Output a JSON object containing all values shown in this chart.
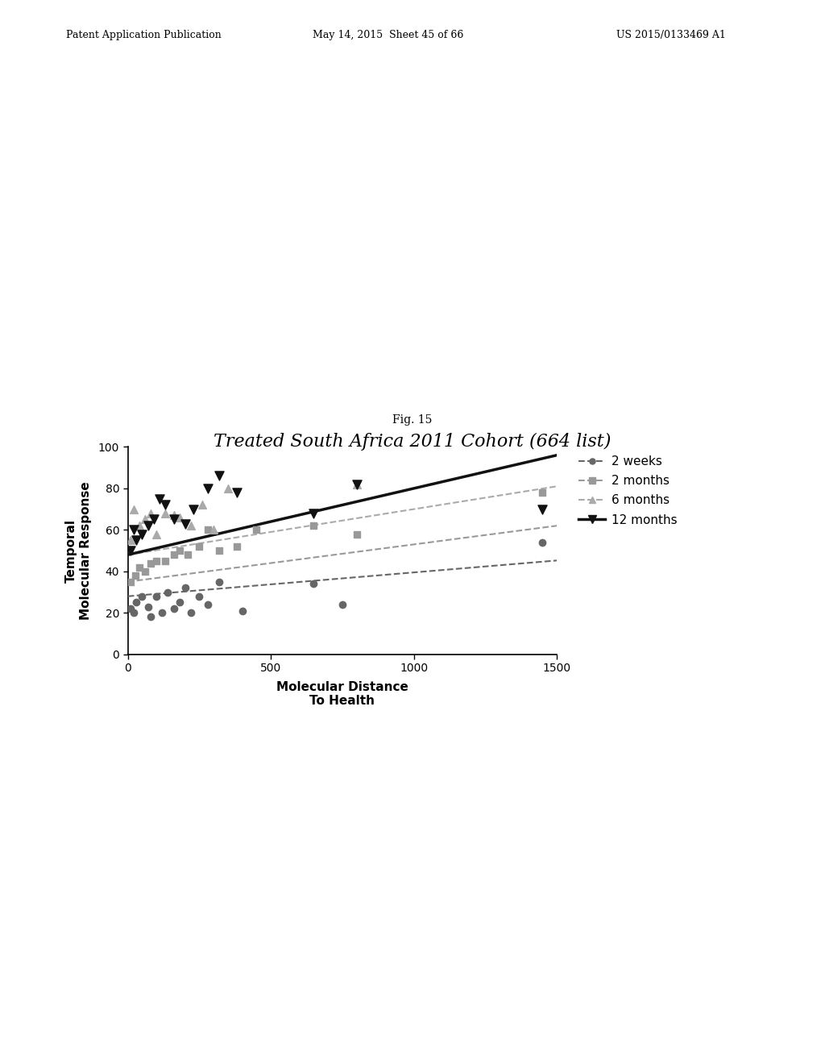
{
  "fig_label": "Fig. 15",
  "title": "Treated South Africa 2011 Cohort (664 list)",
  "xlabel": "Molecular Distance\nTo Health",
  "ylabel": "Temporal\nMolecular Response",
  "xlim": [
    0,
    1500
  ],
  "ylim": [
    0,
    100
  ],
  "xticks": [
    0,
    500,
    1000,
    1500
  ],
  "yticks": [
    0,
    20,
    40,
    60,
    80,
    100
  ],
  "series": [
    {
      "label": "2 weeks",
      "color": "#666666",
      "marker": "o",
      "markersize": 6,
      "line_slope": 0.0115,
      "line_intercept": 28.0,
      "linewidth": 1.5,
      "linestyle": "--",
      "scatter_x": [
        10,
        20,
        30,
        50,
        70,
        80,
        100,
        120,
        140,
        160,
        180,
        200,
        220,
        250,
        280,
        320,
        400,
        650,
        750,
        1450
      ],
      "scatter_y": [
        22,
        20,
        25,
        28,
        23,
        18,
        28,
        20,
        30,
        22,
        25,
        32,
        20,
        28,
        24,
        35,
        21,
        34,
        24,
        54
      ]
    },
    {
      "label": "2 months",
      "color": "#999999",
      "marker": "s",
      "markersize": 6,
      "line_slope": 0.018,
      "line_intercept": 35.0,
      "linewidth": 1.5,
      "linestyle": "--",
      "scatter_x": [
        10,
        25,
        40,
        60,
        80,
        100,
        130,
        160,
        180,
        210,
        250,
        280,
        320,
        380,
        450,
        650,
        800,
        1450
      ],
      "scatter_y": [
        35,
        38,
        42,
        40,
        44,
        45,
        45,
        48,
        50,
        48,
        52,
        60,
        50,
        52,
        60,
        62,
        58,
        78
      ]
    },
    {
      "label": "6 months",
      "color": "#aaaaaa",
      "marker": "^",
      "markersize": 7,
      "line_slope": 0.022,
      "line_intercept": 48.0,
      "linewidth": 1.5,
      "linestyle": "--",
      "scatter_x": [
        10,
        20,
        40,
        60,
        80,
        100,
        130,
        160,
        180,
        220,
        260,
        300,
        350,
        800
      ],
      "scatter_y": [
        55,
        70,
        62,
        65,
        68,
        58,
        68,
        67,
        66,
        62,
        72,
        60,
        80,
        82
      ]
    },
    {
      "label": "12 months",
      "color": "#111111",
      "marker": "v",
      "markersize": 8,
      "line_slope": 0.032,
      "line_intercept": 48.0,
      "linewidth": 2.5,
      "linestyle": "-",
      "scatter_x": [
        10,
        20,
        30,
        50,
        70,
        90,
        110,
        130,
        160,
        200,
        230,
        280,
        320,
        380,
        650,
        800,
        1450
      ],
      "scatter_y": [
        50,
        60,
        55,
        58,
        62,
        65,
        75,
        72,
        65,
        63,
        70,
        80,
        86,
        78,
        68,
        82,
        70
      ]
    }
  ],
  "background_color": "#ffffff",
  "header_left": "Patent Application Publication",
  "header_mid": "May 14, 2015  Sheet 45 of 66",
  "header_right": "US 2015/0133469 A1"
}
